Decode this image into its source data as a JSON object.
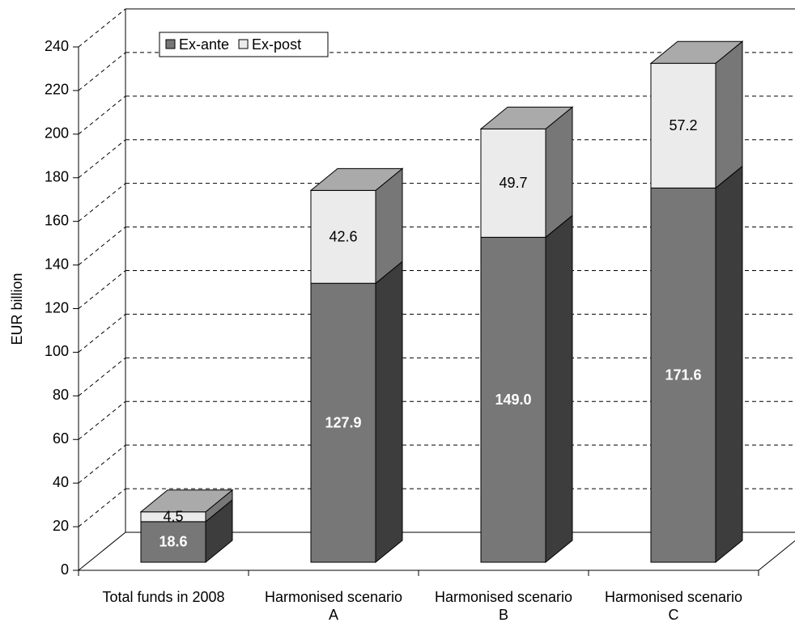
{
  "chart_data": {
    "type": "bar3d_stacked",
    "y_label": "EUR billion",
    "categories": [
      "Total funds in 2008",
      "Harmonised scenario A",
      "Harmonised scenario B",
      "Harmonised scenario C"
    ],
    "series": [
      {
        "name": "Ex-ante",
        "color": "#777777",
        "side": "#3d3d3d",
        "values": [
          18.6,
          127.9,
          149.0,
          171.6
        ],
        "value_labels": [
          "18.6",
          "127.9",
          "149.0",
          "171.6"
        ],
        "label_color": "#ffffff"
      },
      {
        "name": "Ex-post",
        "color": "#ebebeb",
        "side": "#777777",
        "values": [
          4.5,
          42.6,
          49.7,
          57.2
        ],
        "value_labels": [
          "4.5",
          "42.6",
          "49.7",
          "57.2"
        ],
        "label_color": "#000000"
      }
    ],
    "top_color": "#aaaaaa",
    "ylim": [
      0,
      240
    ],
    "yticks": [
      0,
      20,
      40,
      60,
      80,
      100,
      120,
      140,
      160,
      180,
      200,
      220,
      240
    ],
    "grid": true,
    "legend": "top-left"
  }
}
